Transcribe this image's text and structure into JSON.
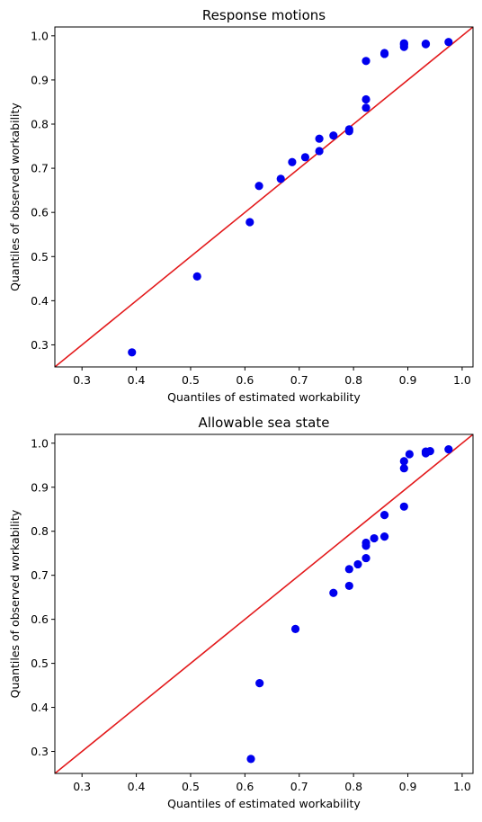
{
  "chart_data": [
    {
      "type": "scatter",
      "title": "Response motions",
      "xlabel": "Quantiles of estimated workability",
      "ylabel": "Quantiles of observed workability",
      "xlim": [
        0.25,
        1.02
      ],
      "ylim": [
        0.25,
        1.02
      ],
      "xticks": [
        "0.3",
        "0.4",
        "0.5",
        "0.6",
        "0.7",
        "0.8",
        "0.9",
        "1.0"
      ],
      "yticks": [
        "0.3",
        "0.4",
        "0.5",
        "0.6",
        "0.7",
        "0.8",
        "0.9",
        "1.0"
      ],
      "grid": false,
      "point_color": "#0000ee",
      "line_color": "#e31a1c",
      "reference_line": "y = x",
      "points": [
        {
          "x": 0.392,
          "y": 0.283
        },
        {
          "x": 0.512,
          "y": 0.455
        },
        {
          "x": 0.609,
          "y": 0.578
        },
        {
          "x": 0.626,
          "y": 0.66
        },
        {
          "x": 0.666,
          "y": 0.676
        },
        {
          "x": 0.687,
          "y": 0.714
        },
        {
          "x": 0.711,
          "y": 0.725
        },
        {
          "x": 0.737,
          "y": 0.739
        },
        {
          "x": 0.737,
          "y": 0.767
        },
        {
          "x": 0.763,
          "y": 0.774
        },
        {
          "x": 0.792,
          "y": 0.784
        },
        {
          "x": 0.792,
          "y": 0.788
        },
        {
          "x": 0.823,
          "y": 0.837
        },
        {
          "x": 0.823,
          "y": 0.856
        },
        {
          "x": 0.823,
          "y": 0.943
        },
        {
          "x": 0.857,
          "y": 0.959
        },
        {
          "x": 0.857,
          "y": 0.961
        },
        {
          "x": 0.893,
          "y": 0.975
        },
        {
          "x": 0.893,
          "y": 0.98
        },
        {
          "x": 0.893,
          "y": 0.983
        },
        {
          "x": 0.933,
          "y": 0.981
        },
        {
          "x": 0.933,
          "y": 0.982
        },
        {
          "x": 0.975,
          "y": 0.986
        }
      ]
    },
    {
      "type": "scatter",
      "title": "Allowable sea state",
      "xlabel": "Quantiles of estimated workability",
      "ylabel": "Quantiles of observed workability",
      "xlim": [
        0.25,
        1.02
      ],
      "ylim": [
        0.25,
        1.02
      ],
      "xticks": [
        "0.3",
        "0.4",
        "0.5",
        "0.6",
        "0.7",
        "0.8",
        "0.9",
        "1.0"
      ],
      "yticks": [
        "0.3",
        "0.4",
        "0.5",
        "0.6",
        "0.7",
        "0.8",
        "0.9",
        "1.0"
      ],
      "grid": false,
      "point_color": "#0000ee",
      "line_color": "#e31a1c",
      "reference_line": "y = x",
      "points": [
        {
          "x": 0.611,
          "y": 0.283
        },
        {
          "x": 0.627,
          "y": 0.455
        },
        {
          "x": 0.693,
          "y": 0.578
        },
        {
          "x": 0.763,
          "y": 0.66
        },
        {
          "x": 0.792,
          "y": 0.676
        },
        {
          "x": 0.792,
          "y": 0.714
        },
        {
          "x": 0.808,
          "y": 0.725
        },
        {
          "x": 0.823,
          "y": 0.739
        },
        {
          "x": 0.823,
          "y": 0.767
        },
        {
          "x": 0.823,
          "y": 0.774
        },
        {
          "x": 0.838,
          "y": 0.784
        },
        {
          "x": 0.857,
          "y": 0.788
        },
        {
          "x": 0.857,
          "y": 0.837
        },
        {
          "x": 0.893,
          "y": 0.856
        },
        {
          "x": 0.893,
          "y": 0.943
        },
        {
          "x": 0.893,
          "y": 0.959
        },
        {
          "x": 0.903,
          "y": 0.975
        },
        {
          "x": 0.933,
          "y": 0.977
        },
        {
          "x": 0.933,
          "y": 0.981
        },
        {
          "x": 0.941,
          "y": 0.982
        },
        {
          "x": 0.975,
          "y": 0.986
        }
      ]
    }
  ]
}
